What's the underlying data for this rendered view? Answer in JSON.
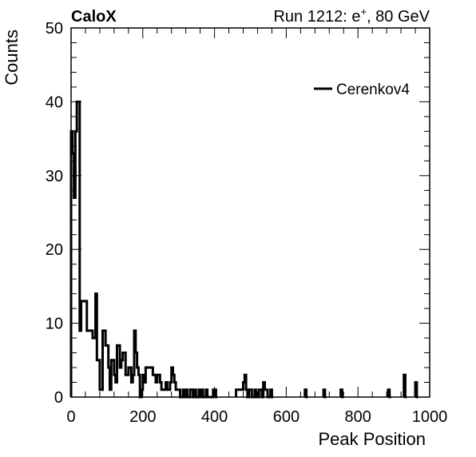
{
  "header": {
    "left": "CaloX",
    "right_prefix": "Run 1212: e",
    "right_sup": "+",
    "right_suffix": ", 80 GeV"
  },
  "chart_data": {
    "type": "histogram",
    "xlabel": "Peak Position",
    "ylabel": "Counts",
    "xlim": [
      0,
      1000
    ],
    "ylim": [
      0,
      50
    ],
    "x_ticks": [
      0,
      200,
      400,
      600,
      800,
      1000
    ],
    "y_ticks": [
      0,
      10,
      20,
      30,
      40,
      50
    ],
    "grid": false,
    "legend": {
      "position": "top-right",
      "entries": [
        "Cerenkov4"
      ]
    },
    "series": [
      {
        "name": "Cerenkov4",
        "color": "#000000",
        "bin_width": 4,
        "bins": [
          [
            0,
            36
          ],
          [
            4,
            33
          ],
          [
            8,
            27
          ],
          [
            12,
            36
          ],
          [
            16,
            40
          ],
          [
            20,
            40
          ],
          [
            24,
            9
          ],
          [
            28,
            13
          ],
          [
            32,
            13
          ],
          [
            36,
            13
          ],
          [
            40,
            13
          ],
          [
            44,
            9
          ],
          [
            48,
            9
          ],
          [
            52,
            9
          ],
          [
            56,
            9
          ],
          [
            60,
            8
          ],
          [
            64,
            8
          ],
          [
            68,
            14
          ],
          [
            72,
            5
          ],
          [
            76,
            5
          ],
          [
            80,
            1
          ],
          [
            84,
            1
          ],
          [
            88,
            9
          ],
          [
            92,
            9
          ],
          [
            96,
            7
          ],
          [
            100,
            7
          ],
          [
            104,
            4
          ],
          [
            108,
            1
          ],
          [
            112,
            5
          ],
          [
            116,
            5
          ],
          [
            120,
            3
          ],
          [
            124,
            2
          ],
          [
            128,
            7
          ],
          [
            132,
            7
          ],
          [
            136,
            4
          ],
          [
            140,
            5
          ],
          [
            144,
            6
          ],
          [
            148,
            6
          ],
          [
            152,
            3
          ],
          [
            156,
            3
          ],
          [
            160,
            4
          ],
          [
            164,
            4
          ],
          [
            168,
            2
          ],
          [
            172,
            3
          ],
          [
            176,
            9
          ],
          [
            180,
            6
          ],
          [
            184,
            4
          ],
          [
            188,
            3
          ],
          [
            192,
            0
          ],
          [
            196,
            1
          ],
          [
            200,
            3
          ],
          [
            204,
            2
          ],
          [
            208,
            4
          ],
          [
            212,
            4
          ],
          [
            216,
            4
          ],
          [
            220,
            4
          ],
          [
            224,
            4
          ],
          [
            228,
            3
          ],
          [
            232,
            3
          ],
          [
            236,
            2
          ],
          [
            240,
            3
          ],
          [
            244,
            3
          ],
          [
            248,
            2
          ],
          [
            252,
            1
          ],
          [
            256,
            1
          ],
          [
            260,
            1
          ],
          [
            264,
            2
          ],
          [
            268,
            1
          ],
          [
            272,
            1
          ],
          [
            276,
            2
          ],
          [
            280,
            4
          ],
          [
            284,
            3
          ],
          [
            288,
            2
          ],
          [
            292,
            1
          ],
          [
            296,
            1
          ],
          [
            300,
            1
          ],
          [
            304,
            0
          ],
          [
            308,
            0
          ],
          [
            312,
            1
          ],
          [
            316,
            0
          ],
          [
            320,
            1
          ],
          [
            324,
            0
          ],
          [
            328,
            0
          ],
          [
            332,
            1
          ],
          [
            336,
            1
          ],
          [
            340,
            0
          ],
          [
            344,
            1
          ],
          [
            348,
            0
          ],
          [
            352,
            0
          ],
          [
            356,
            1
          ],
          [
            360,
            0
          ],
          [
            364,
            1
          ],
          [
            368,
            0
          ],
          [
            372,
            0
          ],
          [
            376,
            1
          ],
          [
            380,
            0
          ],
          [
            384,
            0
          ],
          [
            388,
            0
          ],
          [
            392,
            0
          ],
          [
            396,
            1
          ],
          [
            400,
            1
          ],
          [
            404,
            0
          ],
          [
            460,
            1
          ],
          [
            464,
            1
          ],
          [
            468,
            1
          ],
          [
            472,
            1
          ],
          [
            476,
            1
          ],
          [
            480,
            2
          ],
          [
            484,
            3
          ],
          [
            488,
            1
          ],
          [
            492,
            0
          ],
          [
            496,
            1
          ],
          [
            500,
            1
          ],
          [
            504,
            0
          ],
          [
            508,
            0
          ],
          [
            512,
            1
          ],
          [
            516,
            0
          ],
          [
            520,
            0
          ],
          [
            524,
            1
          ],
          [
            528,
            1
          ],
          [
            532,
            0
          ],
          [
            536,
            2
          ],
          [
            540,
            1
          ],
          [
            544,
            1
          ],
          [
            548,
            0
          ],
          [
            552,
            0
          ],
          [
            556,
            1
          ],
          [
            560,
            0
          ],
          [
            652,
            1
          ],
          [
            656,
            0
          ],
          [
            704,
            1
          ],
          [
            708,
            0
          ],
          [
            752,
            1
          ],
          [
            756,
            0
          ],
          [
            884,
            1
          ],
          [
            888,
            0
          ],
          [
            928,
            3
          ],
          [
            932,
            0
          ],
          [
            960,
            2
          ],
          [
            964,
            0
          ]
        ]
      }
    ]
  }
}
